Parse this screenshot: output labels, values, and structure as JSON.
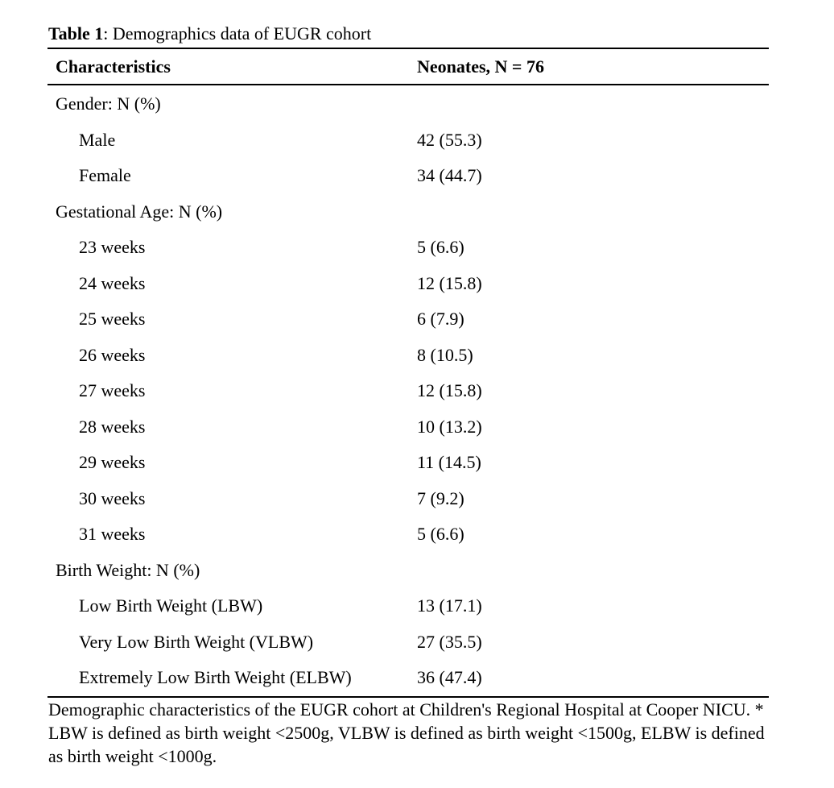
{
  "caption": {
    "label": "Table 1",
    "text": ": Demographics data of EUGR cohort"
  },
  "header": {
    "col1": "Characteristics",
    "col2": "Neonates, N = 76"
  },
  "rows": [
    {
      "label": "Gender: N (%)",
      "value": ""
    },
    {
      "label": "Male",
      "value": "42 (55.3)"
    },
    {
      "label": "Female",
      "value": "34 (44.7)"
    },
    {
      "label": "Gestational Age: N (%)",
      "value": ""
    },
    {
      "label": "23 weeks",
      "value": "5 (6.6)"
    },
    {
      "label": "24 weeks",
      "value": "12 (15.8)"
    },
    {
      "label": "25 weeks",
      "value": "6 (7.9)"
    },
    {
      "label": "26 weeks",
      "value": "8 (10.5)"
    },
    {
      "label": "27 weeks",
      "value": "12 (15.8)"
    },
    {
      "label": "28 weeks",
      "value": "10 (13.2)"
    },
    {
      "label": "29 weeks",
      "value": "11 (14.5)"
    },
    {
      "label": "30 weeks",
      "value": "7 (9.2)"
    },
    {
      "label": "31 weeks",
      "value": "5 (6.6)"
    },
    {
      "label": "Birth Weight: N (%)",
      "value": ""
    },
    {
      "label": "Low Birth Weight (LBW)",
      "value": "13 (17.1)"
    },
    {
      "label": "Very Low Birth Weight (VLBW)",
      "value": "27 (35.5)"
    },
    {
      "label": "Extremely Low Birth Weight (ELBW)",
      "value": "36 (47.4)"
    }
  ],
  "footnote": "Demographic characteristics of the EUGR cohort at Children's Regional Hospital at Cooper NICU. * LBW is defined as birth weight <2500g, VLBW is defined as birth weight <1500g, ELBW is defined as birth weight <1000g."
}
